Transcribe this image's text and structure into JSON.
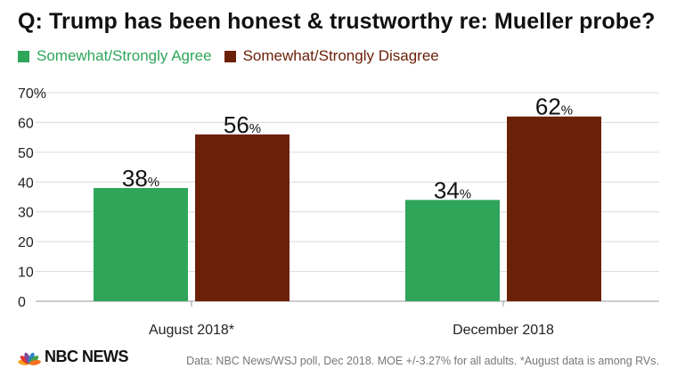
{
  "chart_data": {
    "type": "bar",
    "title": "Q: Trump has been honest & trustworthy re: Mueller probe?",
    "categories": [
      "August 2018*",
      "December 2018"
    ],
    "series": [
      {
        "name": "Somewhat/Strongly Agree",
        "values": [
          38,
          34
        ],
        "color": "#2fa55a"
      },
      {
        "name": "Somewhat/Strongly Disagree",
        "values": [
          56,
          62
        ],
        "color": "#6b2108"
      }
    ],
    "ylim": [
      0,
      70
    ],
    "yticks": [
      "0",
      "10",
      "20",
      "30",
      "40",
      "50",
      "60",
      "70%"
    ],
    "value_suffix": "%",
    "grid": true,
    "legend_position": "top-left"
  },
  "footer": {
    "logo_text": "NBC NEWS",
    "source": "Data: NBC News/WSJ poll, Dec 2018. MOE +/-3.27% for all adults. *August data is among RVs."
  },
  "colors": {
    "agree": "#2fa55a",
    "disagree": "#6b2108",
    "grid": "#d9d9d9",
    "logo": [
      "#f7a21b",
      "#e8352c",
      "#7c4c9f",
      "#2d84c6",
      "#43a047",
      "#f46f22"
    ]
  }
}
